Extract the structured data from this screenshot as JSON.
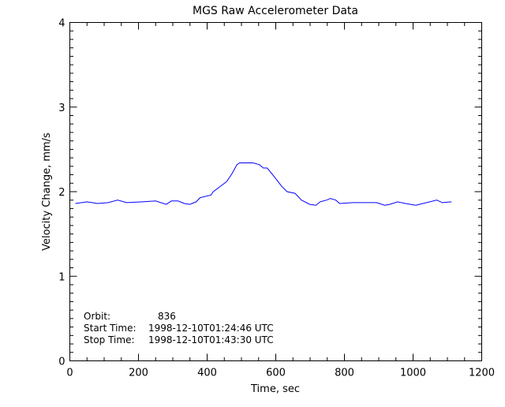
{
  "chart_data": {
    "type": "line",
    "title": "MGS Raw Accelerometer Data",
    "xlabel": "Time, sec",
    "ylabel": "Velocity Change, mm/s",
    "xlim": [
      0,
      1200
    ],
    "ylim": [
      0,
      4
    ],
    "xticks": [
      0,
      200,
      400,
      600,
      800,
      1000,
      1200
    ],
    "yticks": [
      0,
      1,
      2,
      3,
      4
    ],
    "grid": false,
    "line_color": "#0000ff",
    "annotations": [
      {
        "label": "Orbit:",
        "value": "836"
      },
      {
        "label": "Start Time:",
        "value": "1998-12-10T01:24:46 UTC"
      },
      {
        "label": "Stop Time:",
        "value": "1998-12-10T01:43:30 UTC"
      }
    ],
    "series": [
      {
        "x": [
          16,
          50,
          81,
          112,
          139,
          166,
          212,
          250,
          281,
          296,
          315,
          334,
          349,
          368,
          380,
          411,
          418,
          441,
          457,
          472,
          487,
          495,
          533,
          552,
          564,
          575,
          595,
          618,
          633,
          656,
          675,
          699,
          717,
          729,
          748,
          759,
          775,
          786,
          825,
          894,
          917,
          932,
          955,
          978,
          1008,
          1039,
          1069,
          1085,
          1112
        ],
        "y": [
          1.86,
          1.88,
          1.86,
          1.87,
          1.9,
          1.87,
          1.88,
          1.89,
          1.85,
          1.89,
          1.89,
          1.86,
          1.85,
          1.88,
          1.93,
          1.96,
          2.0,
          2.07,
          2.12,
          2.21,
          2.32,
          2.34,
          2.34,
          2.32,
          2.28,
          2.28,
          2.18,
          2.06,
          2.0,
          1.98,
          1.9,
          1.85,
          1.84,
          1.88,
          1.9,
          1.92,
          1.9,
          1.86,
          1.87,
          1.87,
          1.84,
          1.85,
          1.88,
          1.86,
          1.84,
          1.87,
          1.9,
          1.87,
          1.88
        ]
      }
    ]
  }
}
